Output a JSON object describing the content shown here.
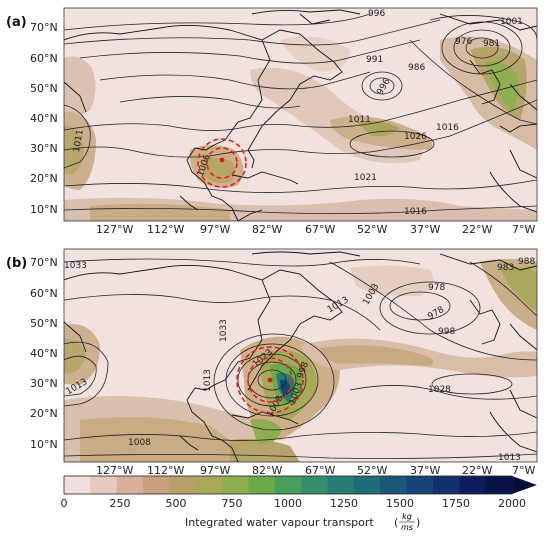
{
  "panels": [
    {
      "label": "(a)",
      "lat_ticks": [
        "70°N",
        "60°N",
        "50°N",
        "40°N",
        "30°N",
        "20°N",
        "10°N"
      ],
      "lon_ticks": [
        "127°W",
        "112°W",
        "97°W",
        "82°W",
        "67°W",
        "52°W",
        "37°W",
        "22°W",
        "7°W"
      ],
      "contour_labels": [
        "996",
        "1001",
        "976",
        "981",
        "991",
        "986",
        "996",
        "1011",
        "1016",
        "1026",
        "1011",
        "1006",
        "1021",
        "1016"
      ]
    },
    {
      "label": "(b)",
      "lat_ticks": [
        "70°N",
        "60°N",
        "50°N",
        "40°N",
        "30°N",
        "20°N",
        "10°N"
      ],
      "lon_ticks": [
        "127°W",
        "112°W",
        "97°W",
        "82°W",
        "67°W",
        "52°W",
        "37°W",
        "22°W",
        "7°W"
      ],
      "contour_labels": [
        "1033",
        "983",
        "988",
        "978",
        "978",
        "1013",
        "1003",
        "998",
        "1033",
        "1013",
        "1013",
        "1023",
        "998",
        "1003",
        "1028",
        "1008",
        "1008",
        "1013"
      ]
    }
  ],
  "colorbar": {
    "ticks": [
      "0",
      "250",
      "500",
      "750",
      "1000",
      "1250",
      "1500",
      "1750",
      "2000"
    ],
    "label": "Integrated water vapour transport",
    "unit_num": "kg",
    "unit_den": "ms",
    "colors": [
      "#f2dede",
      "#e6c9bf",
      "#d8b09c",
      "#c99f7e",
      "#b8a06a",
      "#a7a85a",
      "#8fae50",
      "#6ca94a",
      "#4a9e5c",
      "#348f6a",
      "#267d73",
      "#1f6b76",
      "#1b5778",
      "#184377",
      "#142f6e",
      "#0e1d5c",
      "#081347"
    ]
  },
  "colors": {
    "background_ivt": "#f1dfdc",
    "land_line": "#111111",
    "contour": "#222222",
    "circle": "#e0211f",
    "storm_center": "#d41c1c"
  }
}
